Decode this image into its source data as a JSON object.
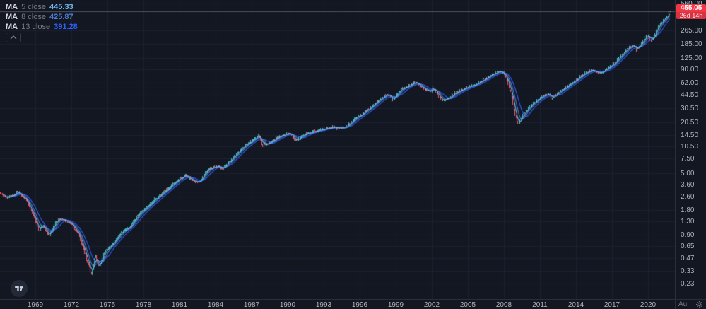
{
  "legend": {
    "collapse_icon": "chevron-up-icon"
  },
  "price_axis": {
    "last_price": "455.05",
    "countdown": "26d 14h",
    "badge_color": "#f23645",
    "countdown_color": "#d8313f"
  },
  "time_axis": {
    "partial_label": "Au"
  },
  "chart_data": {
    "type": "candlestick",
    "scale": "log",
    "x_unit": "year",
    "x_ticks": [
      "1969",
      "1972",
      "1975",
      "1978",
      "1981",
      "1984",
      "1987",
      "1990",
      "1993",
      "1996",
      "1999",
      "2002",
      "2005",
      "2008",
      "2011",
      "2014",
      "2017",
      "2020"
    ],
    "y_ticks": [
      "560.00",
      "265.00",
      "185.00",
      "125.00",
      "90.00",
      "62.00",
      "44.50",
      "30.50",
      "20.50",
      "14.50",
      "10.50",
      "7.50",
      "5.00",
      "3.60",
      "2.60",
      "1.80",
      "1.30",
      "0.90",
      "0.65",
      "0.47",
      "0.33",
      "0.23"
    ],
    "up_color": "#3db9ad",
    "down_color": "#ef5360",
    "grid_color": "#1d2130",
    "price_line_value": 455.05,
    "price_line_color": "rgba(178,181,190,0.40)",
    "moving_averages": [
      {
        "label": "MA",
        "params": "5 close",
        "period": 5,
        "value": "445.33",
        "color": "#70b8f0"
      },
      {
        "label": "MA",
        "params": "8 close",
        "period": 8,
        "value": "425.87",
        "color": "#4e7fd0"
      },
      {
        "label": "MA",
        "params": "13 close",
        "period": 13,
        "value": "391.28",
        "color": "#2962ff"
      }
    ],
    "last_candle": {
      "open": 461,
      "high": 466,
      "low": 450,
      "close": 455.05
    },
    "anchors": [
      [
        1966.05,
        2.9
      ],
      [
        1966.6,
        2.45
      ],
      [
        1967.5,
        2.95
      ],
      [
        1968.2,
        2.35
      ],
      [
        1968.8,
        1.55
      ],
      [
        1969.25,
        1.0
      ],
      [
        1969.6,
        1.2
      ],
      [
        1970.05,
        0.86
      ],
      [
        1970.55,
        1.18
      ],
      [
        1970.95,
        1.42
      ],
      [
        1971.55,
        1.3
      ],
      [
        1972.0,
        1.2
      ],
      [
        1972.6,
        0.88
      ],
      [
        1973.05,
        0.55
      ],
      [
        1973.45,
        0.37
      ],
      [
        1973.65,
        0.3
      ],
      [
        1973.95,
        0.5
      ],
      [
        1974.25,
        0.37
      ],
      [
        1974.75,
        0.57
      ],
      [
        1975.35,
        0.68
      ],
      [
        1976.1,
        0.96
      ],
      [
        1976.9,
        1.15
      ],
      [
        1977.7,
        1.68
      ],
      [
        1978.65,
        2.2
      ],
      [
        1979.6,
        2.9
      ],
      [
        1980.6,
        3.9
      ],
      [
        1981.45,
        4.75
      ],
      [
        1982.1,
        4.0
      ],
      [
        1982.6,
        3.85
      ],
      [
        1983.25,
        5.4
      ],
      [
        1984.05,
        6.1
      ],
      [
        1984.55,
        5.7
      ],
      [
        1985.35,
        7.5
      ],
      [
        1986.25,
        10.2
      ],
      [
        1987.05,
        12.6
      ],
      [
        1987.6,
        14.8
      ],
      [
        1987.85,
        10.8
      ],
      [
        1988.45,
        11.6
      ],
      [
        1989.35,
        13.9
      ],
      [
        1990.15,
        15.3
      ],
      [
        1990.65,
        12.2
      ],
      [
        1991.25,
        14.6
      ],
      [
        1992.05,
        15.7
      ],
      [
        1993.05,
        17.2
      ],
      [
        1994.05,
        17.7
      ],
      [
        1994.65,
        17.3
      ],
      [
        1995.55,
        22.5
      ],
      [
        1996.55,
        28.5
      ],
      [
        1997.65,
        39
      ],
      [
        1998.35,
        45
      ],
      [
        1998.7,
        38
      ],
      [
        1999.35,
        51
      ],
      [
        2000.25,
        60
      ],
      [
        2000.6,
        63
      ],
      [
        2001.25,
        53
      ],
      [
        2001.75,
        48
      ],
      [
        2002.15,
        53
      ],
      [
        2002.8,
        37
      ],
      [
        2003.25,
        40
      ],
      [
        2004.25,
        50
      ],
      [
        2005.35,
        57
      ],
      [
        2006.35,
        68
      ],
      [
        2007.25,
        82
      ],
      [
        2007.7,
        87
      ],
      [
        2008.15,
        72
      ],
      [
        2008.6,
        45
      ],
      [
        2008.9,
        24
      ],
      [
        2009.2,
        20
      ],
      [
        2009.65,
        27
      ],
      [
        2010.25,
        33.5
      ],
      [
        2010.6,
        36.5
      ],
      [
        2011.15,
        43
      ],
      [
        2011.7,
        46
      ],
      [
        2011.9,
        40
      ],
      [
        2012.45,
        47
      ],
      [
        2013.05,
        54
      ],
      [
        2013.85,
        66
      ],
      [
        2014.65,
        80
      ],
      [
        2015.35,
        90
      ],
      [
        2015.8,
        80
      ],
      [
        2016.25,
        86
      ],
      [
        2016.95,
        100
      ],
      [
        2017.65,
        128
      ],
      [
        2018.25,
        160
      ],
      [
        2018.8,
        178
      ],
      [
        2019.0,
        152
      ],
      [
        2019.55,
        200
      ],
      [
        2019.98,
        238
      ],
      [
        2020.26,
        192
      ],
      [
        2020.65,
        270
      ],
      [
        2020.98,
        322
      ],
      [
        2021.25,
        358
      ],
      [
        2021.5,
        392
      ],
      [
        2021.72,
        430
      ],
      [
        2021.88,
        455.05
      ]
    ]
  }
}
